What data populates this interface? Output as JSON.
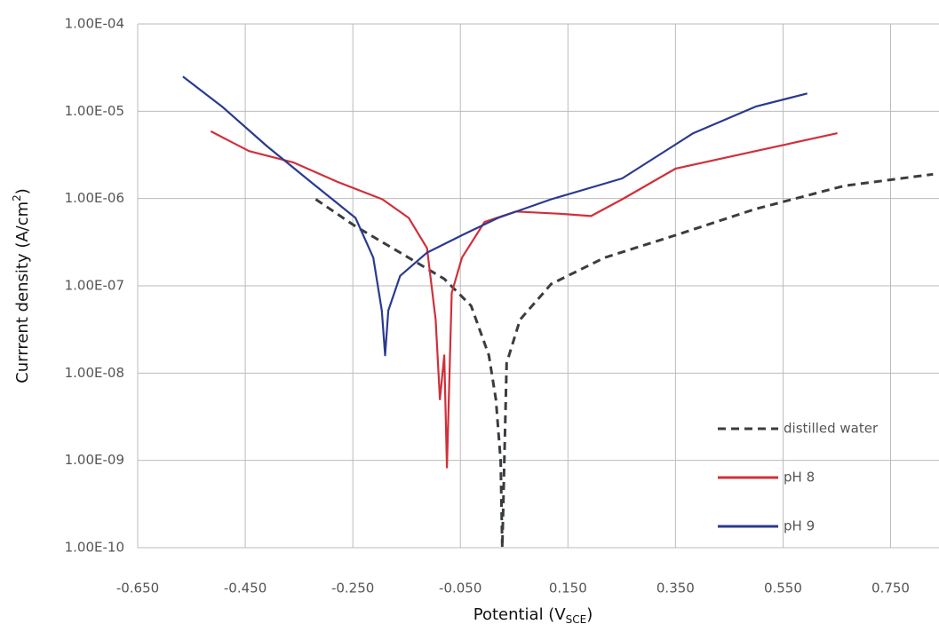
{
  "chart_data": {
    "type": "line",
    "y_label": {
      "text": "Currrent density (A/cm",
      "sup": "2",
      "end": ")"
    },
    "x_label": {
      "text": "Potential (V",
      "sub": "SCE",
      "end": ")"
    },
    "xlim": [
      -0.65,
      0.84
    ],
    "ylim": [
      1e-10,
      0.0001
    ],
    "log_y": true,
    "grid": true,
    "legend": "right",
    "xticks": [
      {
        "value": -0.65,
        "label": "-0.650"
      },
      {
        "value": -0.45,
        "label": "-0.450"
      },
      {
        "value": -0.25,
        "label": "-0.250"
      },
      {
        "value": -0.05,
        "label": "-0.050"
      },
      {
        "value": 0.15,
        "label": "0.150"
      },
      {
        "value": 0.35,
        "label": "0.350"
      },
      {
        "value": 0.55,
        "label": "0.550"
      },
      {
        "value": 0.75,
        "label": "0.750"
      }
    ],
    "yticks": [
      {
        "value": 1e-10,
        "label": "1.00E-10"
      },
      {
        "value": 1e-09,
        "label": "1.00E-09"
      },
      {
        "value": 1e-08,
        "label": "1.00E-08"
      },
      {
        "value": 1e-07,
        "label": "1.00E-07"
      },
      {
        "value": 1e-06,
        "label": "1.00E-06"
      },
      {
        "value": 1e-05,
        "label": "1.00E-05"
      },
      {
        "value": 0.0001,
        "label": "1.00E-04"
      }
    ],
    "series": [
      {
        "name": "distilled water",
        "color": "#3a3d40",
        "dashed": true,
        "x": [
          -0.319,
          -0.245,
          -0.162,
          -0.08,
          -0.03,
          0.003,
          0.016,
          0.025,
          0.028,
          0.036,
          0.061,
          0.119,
          0.218,
          0.35,
          0.499,
          0.664,
          0.829
        ],
        "values": [
          9.8e-07,
          4.8e-07,
          2.4e-07,
          1.2e-07,
          5.9e-08,
          1.6e-08,
          5e-09,
          9.8e-10,
          1e-10,
          1.3e-08,
          4.1e-08,
          1.05e-07,
          2.1e-07,
          3.8e-07,
          7.6e-07,
          1.4e-06,
          1.9e-06
        ]
      },
      {
        "name": "pH 8",
        "color": "#d0303a",
        "dashed": false,
        "x": [
          -0.514,
          -0.443,
          -0.361,
          -0.278,
          -0.195,
          -0.146,
          -0.112,
          -0.096,
          -0.088,
          -0.08,
          -0.075,
          -0.066,
          -0.047,
          -0.005,
          0.053,
          0.135,
          0.193,
          0.251,
          0.35,
          0.499,
          0.651
        ],
        "values": [
          5.9e-06,
          3.5e-06,
          2.6e-06,
          1.55e-06,
          9.8e-07,
          6e-07,
          2.7e-07,
          4.1e-08,
          5e-09,
          1.6e-08,
          8.3e-10,
          8.3e-08,
          2.1e-07,
          5.4e-07,
          7.1e-07,
          6.7e-07,
          6.3e-07,
          9.8e-07,
          2.2e-06,
          3.5e-06,
          5.6e-06
        ]
      },
      {
        "name": "pH 9",
        "color": "#2a3a8f",
        "dashed": false,
        "x": [
          -0.566,
          -0.493,
          -0.41,
          -0.328,
          -0.245,
          -0.212,
          -0.196,
          -0.19,
          -0.184,
          -0.162,
          -0.112,
          -0.047,
          0.02,
          0.119,
          0.251,
          0.383,
          0.499,
          0.595
        ],
        "values": [
          2.5e-05,
          1.13e-05,
          4e-06,
          1.55e-06,
          6e-07,
          2.1e-07,
          5.2e-08,
          1.6e-08,
          5.2e-08,
          1.3e-07,
          2.4e-07,
          3.8e-07,
          6e-07,
          9.8e-07,
          1.7e-06,
          5.6e-06,
          1.13e-05,
          1.6e-05
        ]
      }
    ]
  }
}
